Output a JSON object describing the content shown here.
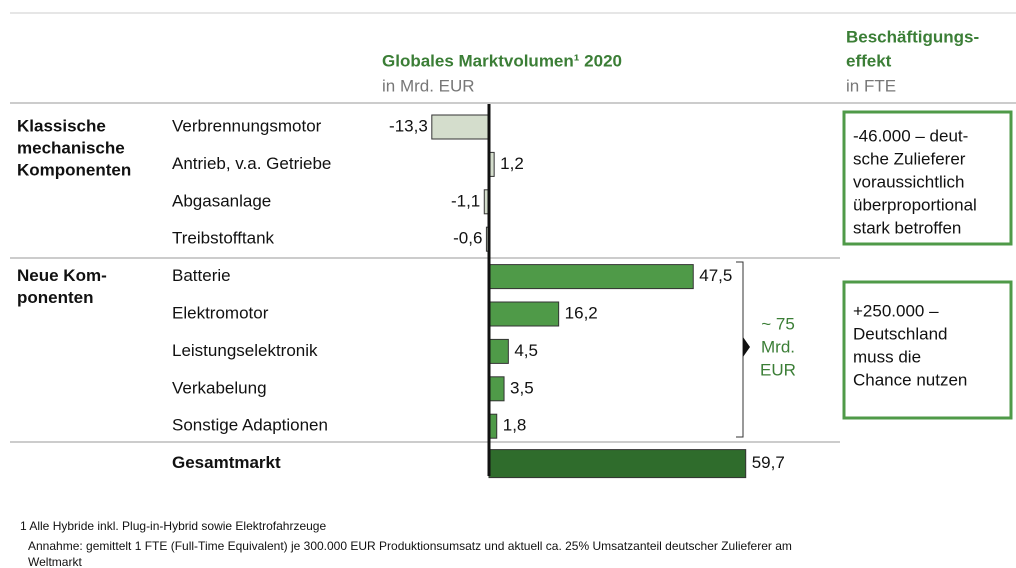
{
  "chart_data": {
    "type": "hbar",
    "title": "Globales Marktvolumen¹ 2020",
    "subtitle": "in Mrd. EUR",
    "groups": [
      {
        "name_lines": [
          "Klassische",
          "mechanische",
          "Komponenten"
        ],
        "categories": [
          "Verbrennungsmotor",
          "Antrieb, v.a. Getriebe",
          "Abgasanlage",
          "Treibstofftank"
        ],
        "values": [
          -13.3,
          1.2,
          -1.1,
          -0.6
        ],
        "value_labels": [
          "-13,3",
          "1,2",
          "-1,1",
          "-0,6"
        ],
        "color": "#d4ddcc"
      },
      {
        "name_lines": [
          "Neue Kom-",
          "ponenten"
        ],
        "categories": [
          "Batterie",
          "Elektromotor",
          "Leistungselektronik",
          "Verkabelung",
          "Sonstige Adaptionen"
        ],
        "values": [
          47.5,
          16.2,
          4.5,
          3.5,
          1.8
        ],
        "value_labels": [
          "47,5",
          "16,2",
          "4,5",
          "3,5",
          "1,8"
        ],
        "color": "#4f9a48"
      }
    ],
    "total": {
      "name": "Gesamtmarkt",
      "value": 59.7,
      "value_label": "59,7",
      "color": "#2f6c2c"
    },
    "brace_annotation": [
      "~ 75",
      "Mrd.",
      "EUR"
    ],
    "effect_header": [
      "Beschäftigungs-",
      "effekt"
    ],
    "effect_subtitle": "in FTE",
    "effect_boxes": [
      [
        "-46.000 – deut-",
        "sche Zulieferer",
        "voraussichtlich",
        "überproportional",
        "stark betroffen"
      ],
      [
        "+250.000 –",
        "Deutschland",
        "muss die",
        "Chance nutzen"
      ]
    ],
    "footnotes": [
      "1 Alle Hybride inkl. Plug-in-Hybrid sowie Elektrofahrzeuge",
      "Annahme: gemittelt 1 FTE (Full-Time Equivalent) je 300.000 EUR Produktionsumsatz und aktuell ca. 25% Umsatzanteil deutscher Zulieferer am",
      "Weltmarkt"
    ]
  }
}
